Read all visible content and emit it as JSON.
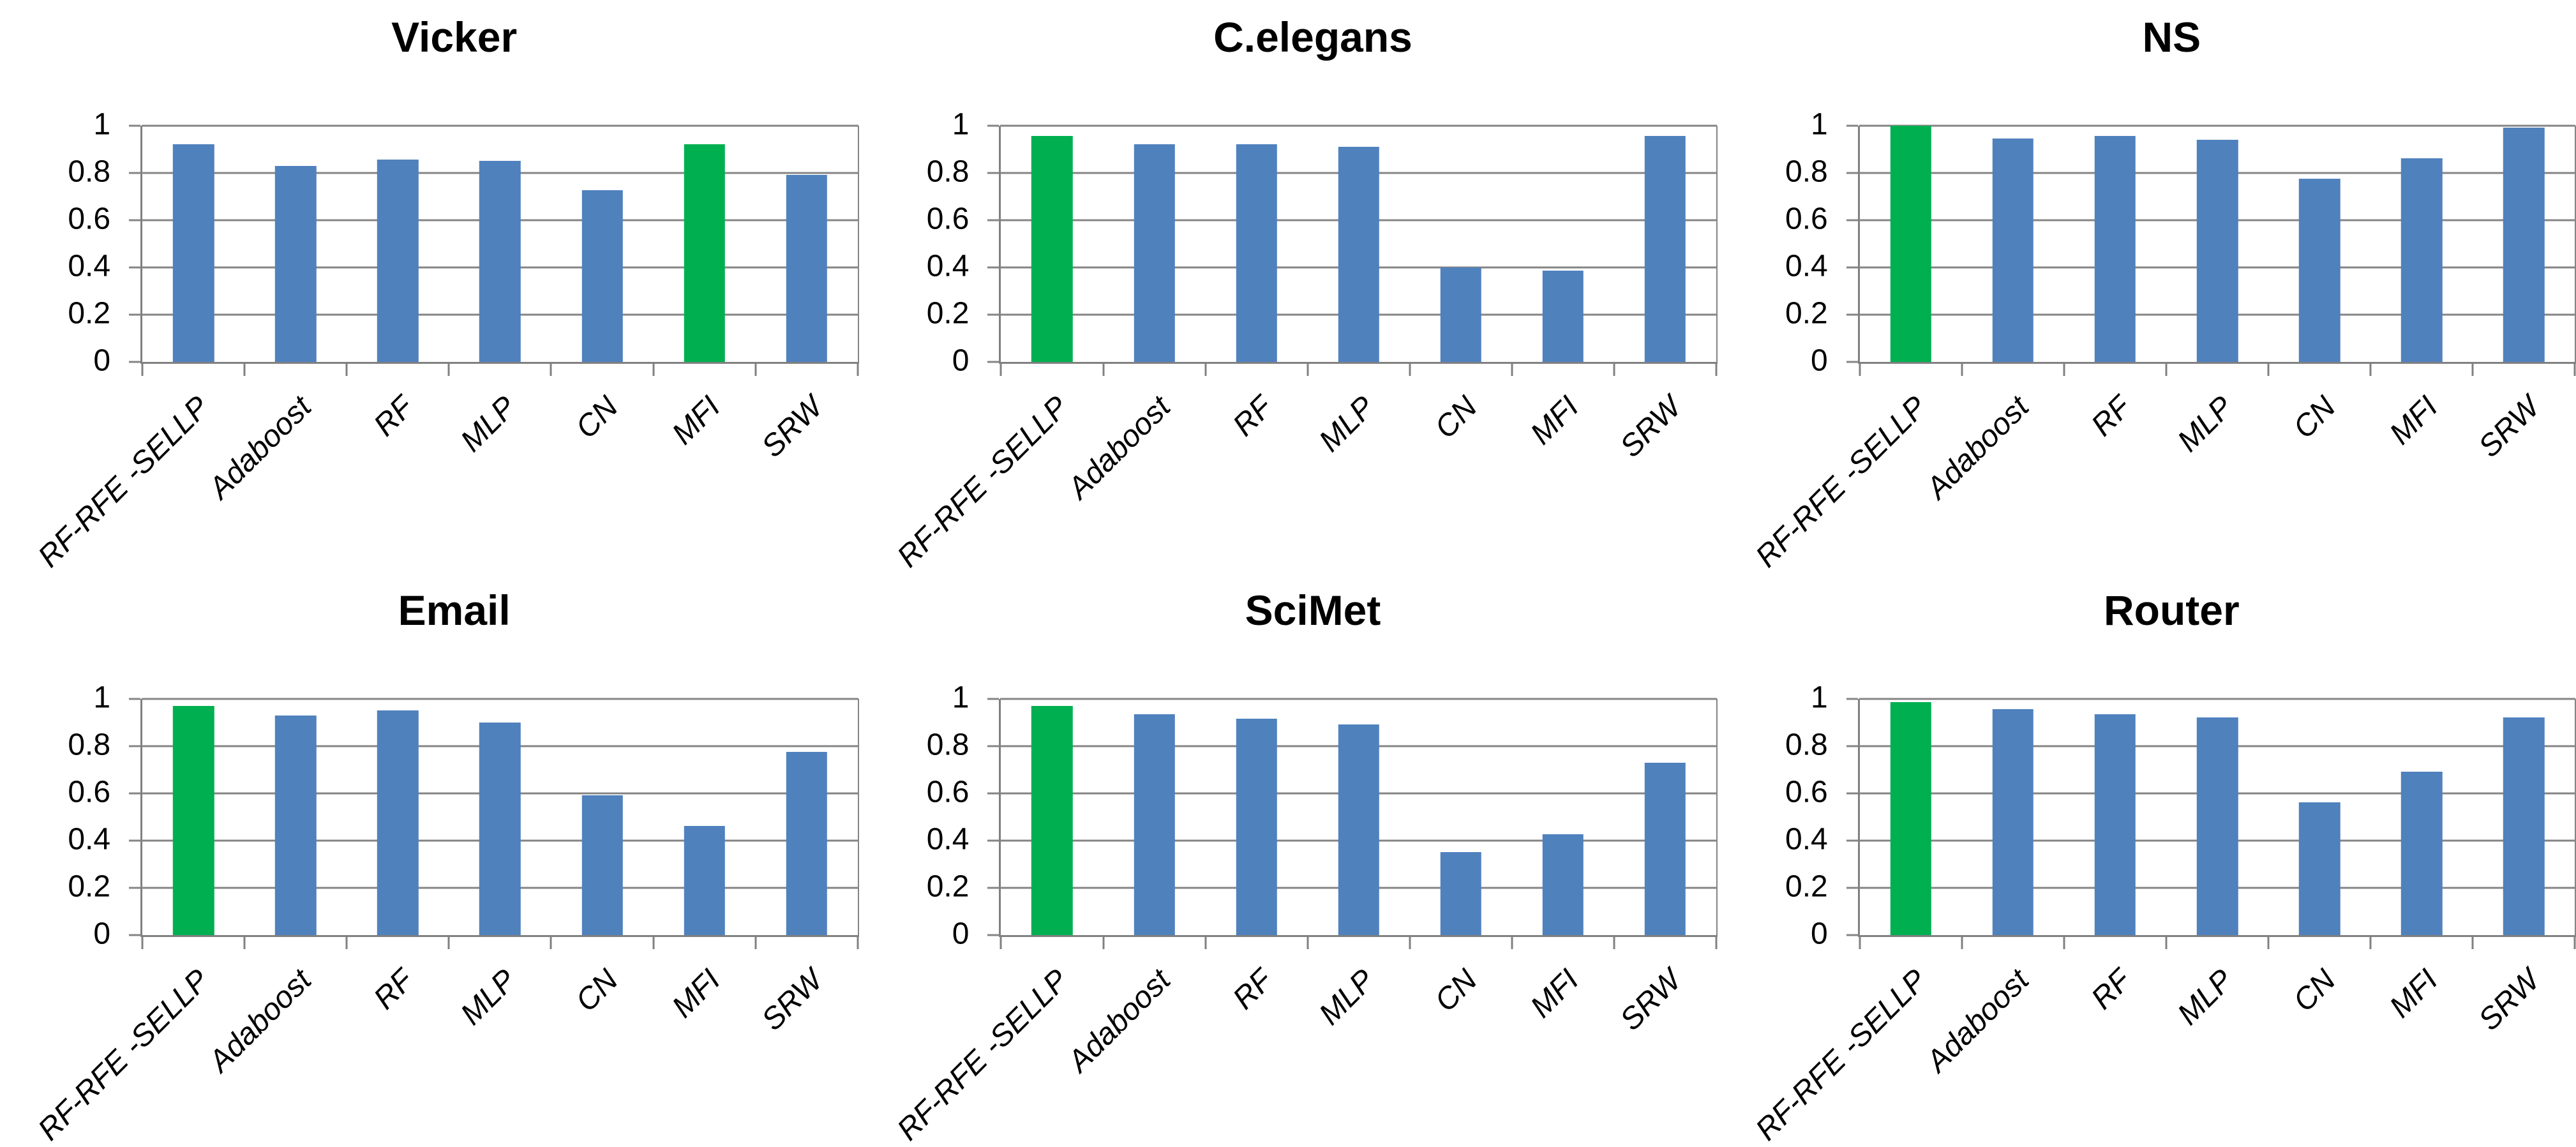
{
  "colors": {
    "bar_default": "#4F81BD",
    "bar_highlight": "#00B050",
    "gridline": "#848484",
    "axis": "#808080",
    "text": "#000000",
    "background": "#FFFFFF"
  },
  "y_axis": {
    "min": 0,
    "max": 1,
    "tick_labels": [
      "0",
      "0.2",
      "0.4",
      "0.6",
      "0.8",
      "1"
    ]
  },
  "chart_data": [
    {
      "type": "bar",
      "title": "Vicker",
      "categories": [
        "RF-RFE -SELLP",
        "Adaboost",
        "RF",
        "MLP",
        "CN",
        "MFI",
        "SRW"
      ],
      "values": [
        0.92,
        0.83,
        0.855,
        0.85,
        0.725,
        0.92,
        0.79
      ],
      "highlight_category": "MFI",
      "highlight_index": 5,
      "ylim": [
        0,
        1
      ],
      "yticks": [
        "0",
        "0.2",
        "0.4",
        "0.6",
        "0.8",
        "1"
      ],
      "grid": true,
      "legend_position": "none"
    },
    {
      "type": "bar",
      "title": "C.elegans",
      "categories": [
        "RF-RFE -SELLP",
        "Adaboost",
        "RF",
        "MLP",
        "CN",
        "MFI",
        "SRW"
      ],
      "values": [
        0.955,
        0.92,
        0.92,
        0.91,
        0.4,
        0.385,
        0.955
      ],
      "highlight_category": "RF-RFE -SELLP",
      "highlight_index": 0,
      "ylim": [
        0,
        1
      ],
      "yticks": [
        "0",
        "0.2",
        "0.4",
        "0.6",
        "0.8",
        "1"
      ],
      "grid": true,
      "legend_position": "none"
    },
    {
      "type": "bar",
      "title": "NS",
      "categories": [
        "RF-RFE -SELLP",
        "Adaboost",
        "RF",
        "MLP",
        "CN",
        "MFI",
        "SRW"
      ],
      "values": [
        1.0,
        0.945,
        0.955,
        0.94,
        0.775,
        0.86,
        0.99
      ],
      "highlight_category": "RF-RFE -SELLP",
      "highlight_index": 0,
      "ylim": [
        0,
        1
      ],
      "yticks": [
        "0",
        "0.2",
        "0.4",
        "0.6",
        "0.8",
        "1"
      ],
      "grid": true,
      "legend_position": "none"
    },
    {
      "type": "bar",
      "title": "Email",
      "categories": [
        "RF-RFE -SELLP",
        "Adaboost",
        "RF",
        "MLP",
        "CN",
        "MFI",
        "SRW"
      ],
      "values": [
        0.97,
        0.93,
        0.95,
        0.9,
        0.59,
        0.46,
        0.775
      ],
      "highlight_category": "RF-RFE -SELLP",
      "highlight_index": 0,
      "ylim": [
        0,
        1
      ],
      "yticks": [
        "0",
        "0.2",
        "0.4",
        "0.6",
        "0.8",
        "1"
      ],
      "grid": true,
      "legend_position": "none"
    },
    {
      "type": "bar",
      "title": "SciMet",
      "categories": [
        "RF-RFE -SELLP",
        "Adaboost",
        "RF",
        "MLP",
        "CN",
        "MFI",
        "SRW"
      ],
      "values": [
        0.97,
        0.935,
        0.915,
        0.89,
        0.35,
        0.425,
        0.73
      ],
      "highlight_category": "RF-RFE -SELLP",
      "highlight_index": 0,
      "ylim": [
        0,
        1
      ],
      "yticks": [
        "0",
        "0.2",
        "0.4",
        "0.6",
        "0.8",
        "1"
      ],
      "grid": true,
      "legend_position": "none"
    },
    {
      "type": "bar",
      "title": "Router",
      "categories": [
        "RF-RFE -SELLP",
        "Adaboost",
        "RF",
        "MLP",
        "CN",
        "MFI",
        "SRW"
      ],
      "values": [
        0.985,
        0.955,
        0.935,
        0.92,
        0.56,
        0.69,
        0.92
      ],
      "highlight_category": "RF-RFE -SELLP",
      "highlight_index": 0,
      "ylim": [
        0,
        1
      ],
      "yticks": [
        "0",
        "0.2",
        "0.4",
        "0.6",
        "0.8",
        "1"
      ],
      "grid": true,
      "legend_position": "none"
    }
  ]
}
